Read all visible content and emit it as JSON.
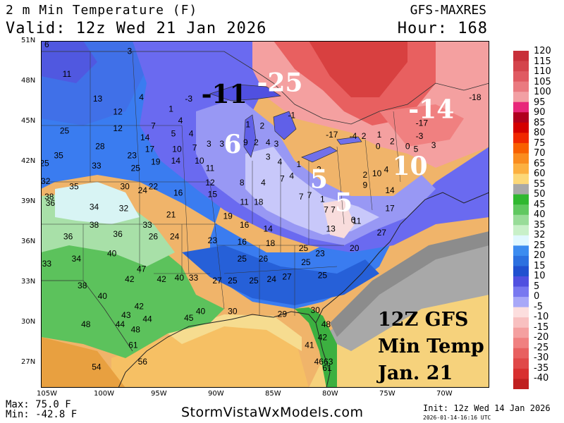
{
  "header": {
    "title": "2 m Min Temperature (F)",
    "valid": "Valid: 12z Wed 21 Jan 2026",
    "model": "GFS-MAXRES",
    "hour": "Hour: 168"
  },
  "footer": {
    "max": "Max: 75.0 F",
    "min": "Min: -42.8 F",
    "site": "StormVistaWxModels.com",
    "init": "Init: 12z Wed 14 Jan 2026",
    "stamp": "2026-01-14-16:16 UTC"
  },
  "caption": {
    "line1": "12Z GFS",
    "line2": "Min Temp",
    "line3": "Jan. 21"
  },
  "axes": {
    "lat_labels": [
      "51N",
      "48N",
      "45N",
      "42N",
      "39N",
      "36N",
      "33N",
      "30N",
      "27N"
    ],
    "lon_labels": [
      "105W",
      "100W",
      "95W",
      "90W",
      "85W",
      "80W",
      "75W",
      "70W"
    ]
  },
  "legend": {
    "labels": [
      "120",
      "115",
      "110",
      "105",
      "100",
      "95",
      "90",
      "85",
      "80",
      "75",
      "70",
      "65",
      "60",
      "55",
      "50",
      "45",
      "40",
      "35",
      "32",
      "25",
      "20",
      "15",
      "10",
      "5",
      "0",
      "-5",
      "-10",
      "-15",
      "-20",
      "-25",
      "-30",
      "-35",
      "-40"
    ],
    "colors": [
      "#c8303a",
      "#d4444c",
      "#e05a62",
      "#ea7a80",
      "#f2a0a4",
      "#e8287a",
      "#b0001e",
      "#d40000",
      "#f02800",
      "#f86000",
      "#fa8c1e",
      "#fcb040",
      "#fcd878",
      "#a8a8a8",
      "#30b830",
      "#60c860",
      "#98dc98",
      "#c8f0c8",
      "#e0f8ff",
      "#3c8cf0",
      "#2c70e0",
      "#2050d0",
      "#5050e0",
      "#7878f0",
      "#a8a8f8",
      "#fcdede",
      "#f8c0c0",
      "#f4a0a0",
      "#f08080",
      "#e86060",
      "#e04848",
      "#d83030",
      "#c02020"
    ]
  },
  "map_labels": {
    "big": [
      {
        "t": "-11",
        "lon": -89.5,
        "lat": 46.2
      },
      {
        "t": "-25",
        "lon": -84.8,
        "lat": 47.1
      },
      {
        "t": "-14",
        "lon": -72.0,
        "lat": 45.0
      },
      {
        "t": "6",
        "lon": -88.8,
        "lat": 42.3
      },
      {
        "t": "5",
        "lon": -81.5,
        "lat": 39.6
      },
      {
        "t": "5",
        "lon": -79.4,
        "lat": 37.8
      },
      {
        "t": "10",
        "lon": -73.8,
        "lat": 40.6
      }
    ],
    "small": [
      {
        "t": "6",
        "lon": -104.5,
        "lat": 50.5
      },
      {
        "t": "3",
        "lon": -97.5,
        "lat": 50.0
      },
      {
        "t": "11",
        "lon": -102.8,
        "lat": 48.2
      },
      {
        "t": "13",
        "lon": -100.2,
        "lat": 46.3
      },
      {
        "t": "4",
        "lon": -96.5,
        "lat": 46.4
      },
      {
        "t": "-3",
        "lon": -92.5,
        "lat": 46.3
      },
      {
        "t": "12",
        "lon": -98.5,
        "lat": 45.3
      },
      {
        "t": "1",
        "lon": -94.0,
        "lat": 45.5
      },
      {
        "t": "12",
        "lon": -98.5,
        "lat": 44.0
      },
      {
        "t": "7",
        "lon": -95.5,
        "lat": 44.2
      },
      {
        "t": "4",
        "lon": -93.2,
        "lat": 44.6
      },
      {
        "t": "25",
        "lon": -103.0,
        "lat": 43.8
      },
      {
        "t": "5",
        "lon": -93.8,
        "lat": 43.6
      },
      {
        "t": "4",
        "lon": -92.3,
        "lat": 43.6
      },
      {
        "t": "14",
        "lon": -96.2,
        "lat": 43.3
      },
      {
        "t": "28",
        "lon": -100.0,
        "lat": 42.6
      },
      {
        "t": "17",
        "lon": -95.8,
        "lat": 42.4
      },
      {
        "t": "10",
        "lon": -93.5,
        "lat": 42.4
      },
      {
        "t": "7",
        "lon": -92.0,
        "lat": 42.5
      },
      {
        "t": "3",
        "lon": -90.8,
        "lat": 42.8
      },
      {
        "t": "3",
        "lon": -89.7,
        "lat": 42.8
      },
      {
        "t": "23",
        "lon": -97.3,
        "lat": 41.9
      },
      {
        "t": "35",
        "lon": -103.5,
        "lat": 41.9
      },
      {
        "t": "19",
        "lon": -95.3,
        "lat": 41.4
      },
      {
        "t": "14",
        "lon": -93.6,
        "lat": 41.5
      },
      {
        "t": "10",
        "lon": -91.6,
        "lat": 41.5
      },
      {
        "t": "11",
        "lon": -90.7,
        "lat": 40.9
      },
      {
        "t": "25",
        "lon": -104.7,
        "lat": 41.3
      },
      {
        "t": "33",
        "lon": -100.3,
        "lat": 41.1
      },
      {
        "t": "25",
        "lon": -97.0,
        "lat": 40.9
      },
      {
        "t": "32",
        "lon": -104.6,
        "lat": 39.9
      },
      {
        "t": "35",
        "lon": -102.2,
        "lat": 39.5
      },
      {
        "t": "30",
        "lon": -97.9,
        "lat": 39.5
      },
      {
        "t": "22",
        "lon": -95.5,
        "lat": 39.5
      },
      {
        "t": "24",
        "lon": -96.4,
        "lat": 39.2
      },
      {
        "t": "12",
        "lon": -90.7,
        "lat": 39.8
      },
      {
        "t": "8",
        "lon": -88.0,
        "lat": 39.8
      },
      {
        "t": "4",
        "lon": -86.2,
        "lat": 39.8
      },
      {
        "t": "16",
        "lon": -93.4,
        "lat": 39.0
      },
      {
        "t": "15",
        "lon": -90.5,
        "lat": 38.9
      },
      {
        "t": "38",
        "lon": -104.3,
        "lat": 38.7
      },
      {
        "t": "36",
        "lon": -104.2,
        "lat": 38.2
      },
      {
        "t": "34",
        "lon": -100.5,
        "lat": 37.9
      },
      {
        "t": "32",
        "lon": -98.0,
        "lat": 37.8
      },
      {
        "t": "21",
        "lon": -94.0,
        "lat": 37.3
      },
      {
        "t": "11",
        "lon": -87.8,
        "lat": 38.3
      },
      {
        "t": "18",
        "lon": -86.6,
        "lat": 38.3
      },
      {
        "t": "19",
        "lon": -89.2,
        "lat": 37.2
      },
      {
        "t": "38",
        "lon": -100.5,
        "lat": 36.5
      },
      {
        "t": "33",
        "lon": -96.0,
        "lat": 36.5
      },
      {
        "t": "16",
        "lon": -87.8,
        "lat": 36.5
      },
      {
        "t": "14",
        "lon": -85.8,
        "lat": 36.2
      },
      {
        "t": "36",
        "lon": -102.7,
        "lat": 35.6
      },
      {
        "t": "36",
        "lon": -98.5,
        "lat": 35.8
      },
      {
        "t": "26",
        "lon": -95.5,
        "lat": 35.6
      },
      {
        "t": "24",
        "lon": -93.7,
        "lat": 35.6
      },
      {
        "t": "23",
        "lon": -90.5,
        "lat": 35.3
      },
      {
        "t": "16",
        "lon": -88.0,
        "lat": 35.2
      },
      {
        "t": "18",
        "lon": -85.6,
        "lat": 35.1
      },
      {
        "t": "40",
        "lon": -99.0,
        "lat": 34.3
      },
      {
        "t": "34",
        "lon": -102.0,
        "lat": 33.9
      },
      {
        "t": "25",
        "lon": -88.0,
        "lat": 33.9
      },
      {
        "t": "26",
        "lon": -86.2,
        "lat": 33.9
      },
      {
        "t": "33",
        "lon": -104.5,
        "lat": 33.5
      },
      {
        "t": "47",
        "lon": -96.5,
        "lat": 33.1
      },
      {
        "t": "42",
        "lon": -97.5,
        "lat": 32.3
      },
      {
        "t": "42",
        "lon": -94.8,
        "lat": 32.3
      },
      {
        "t": "40",
        "lon": -93.3,
        "lat": 32.4
      },
      {
        "t": "33",
        "lon": -92.1,
        "lat": 32.4
      },
      {
        "t": "27",
        "lon": -90.1,
        "lat": 32.2
      },
      {
        "t": "25",
        "lon": -88.8,
        "lat": 32.2
      },
      {
        "t": "25",
        "lon": -87.0,
        "lat": 32.2
      },
      {
        "t": "24",
        "lon": -85.5,
        "lat": 32.3
      },
      {
        "t": "27",
        "lon": -84.2,
        "lat": 32.5
      },
      {
        "t": "38",
        "lon": -101.5,
        "lat": 31.8
      },
      {
        "t": "40",
        "lon": -99.8,
        "lat": 31.0
      },
      {
        "t": "42",
        "lon": -96.7,
        "lat": 30.2
      },
      {
        "t": "43",
        "lon": -97.8,
        "lat": 29.5
      },
      {
        "t": "44",
        "lon": -96.0,
        "lat": 29.2
      },
      {
        "t": "40",
        "lon": -91.5,
        "lat": 29.8
      },
      {
        "t": "45",
        "lon": -92.5,
        "lat": 29.3
      },
      {
        "t": "30",
        "lon": -88.8,
        "lat": 29.8
      },
      {
        "t": "29",
        "lon": -84.6,
        "lat": 29.6
      },
      {
        "t": "30",
        "lon": -81.8,
        "lat": 29.9
      },
      {
        "t": "48",
        "lon": -101.2,
        "lat": 28.8
      },
      {
        "t": "44",
        "lon": -98.3,
        "lat": 28.8
      },
      {
        "t": "48",
        "lon": -97.0,
        "lat": 28.4
      },
      {
        "t": "48",
        "lon": -80.9,
        "lat": 28.8
      },
      {
        "t": "42",
        "lon": -81.2,
        "lat": 27.8
      },
      {
        "t": "41",
        "lon": -82.3,
        "lat": 27.2
      },
      {
        "t": "61",
        "lon": -97.2,
        "lat": 27.2
      },
      {
        "t": "56",
        "lon": -96.4,
        "lat": 25.9
      },
      {
        "t": "54",
        "lon": -100.3,
        "lat": 25.5
      },
      {
        "t": "46",
        "lon": -81.5,
        "lat": 25.9
      },
      {
        "t": "63",
        "lon": -80.7,
        "lat": 25.9
      },
      {
        "t": "61",
        "lon": -80.8,
        "lat": 25.4
      },
      {
        "t": "-17",
        "lon": -80.4,
        "lat": 43.5
      },
      {
        "t": "-4",
        "lon": -78.6,
        "lat": 43.4
      },
      {
        "t": "2",
        "lon": -77.7,
        "lat": 43.4
      },
      {
        "t": "1",
        "lon": -76.4,
        "lat": 43.5
      },
      {
        "t": "0",
        "lon": -76.5,
        "lat": 42.6
      },
      {
        "t": "2",
        "lon": -75.3,
        "lat": 43.0
      },
      {
        "t": "-18",
        "lon": -68.3,
        "lat": 46.4
      },
      {
        "t": "-17",
        "lon": -72.8,
        "lat": 44.4
      },
      {
        "t": "-3",
        "lon": -73.0,
        "lat": 43.4
      },
      {
        "t": "0",
        "lon": -74.0,
        "lat": 42.6
      },
      {
        "t": "5",
        "lon": -73.3,
        "lat": 42.4
      },
      {
        "t": "3",
        "lon": -71.8,
        "lat": 42.7
      },
      {
        "t": "-1",
        "lon": -83.8,
        "lat": 45.0
      },
      {
        "t": "2",
        "lon": -86.3,
        "lat": 44.2
      },
      {
        "t": "1",
        "lon": -87.5,
        "lat": 44.3
      },
      {
        "t": "9",
        "lon": -87.7,
        "lat": 42.9
      },
      {
        "t": "2",
        "lon": -86.8,
        "lat": 42.9
      },
      {
        "t": "4",
        "lon": -85.8,
        "lat": 42.9
      },
      {
        "t": "3",
        "lon": -85.1,
        "lat": 42.8
      },
      {
        "t": "3",
        "lon": -85.8,
        "lat": 41.8
      },
      {
        "t": "4",
        "lon": -84.8,
        "lat": 41.4
      },
      {
        "t": "1",
        "lon": -83.2,
        "lat": 41.2
      },
      {
        "t": "4",
        "lon": -83.8,
        "lat": 40.3
      },
      {
        "t": "7",
        "lon": -84.6,
        "lat": 40.1
      },
      {
        "t": "2",
        "lon": -81.5,
        "lat": 40.8
      },
      {
        "t": "7",
        "lon": -82.3,
        "lat": 38.8
      },
      {
        "t": "7",
        "lon": -83.0,
        "lat": 38.7
      },
      {
        "t": "1",
        "lon": -81.2,
        "lat": 38.5
      },
      {
        "t": "7",
        "lon": -80.9,
        "lat": 37.7
      },
      {
        "t": "7",
        "lon": -80.3,
        "lat": 37.7
      },
      {
        "t": "2",
        "lon": -77.6,
        "lat": 40.4
      },
      {
        "t": "10",
        "lon": -76.6,
        "lat": 40.5
      },
      {
        "t": "4",
        "lon": -75.8,
        "lat": 40.8
      },
      {
        "t": "9",
        "lon": -77.6,
        "lat": 39.6
      },
      {
        "t": "14",
        "lon": -75.5,
        "lat": 39.2
      },
      {
        "t": "17",
        "lon": -75.5,
        "lat": 37.8
      },
      {
        "t": "6",
        "lon": -78.6,
        "lat": 36.9
      },
      {
        "t": "11",
        "lon": -78.3,
        "lat": 36.8
      },
      {
        "t": "13",
        "lon": -80.5,
        "lat": 36.2
      },
      {
        "t": "27",
        "lon": -76.2,
        "lat": 35.9
      },
      {
        "t": "20",
        "lon": -78.5,
        "lat": 34.7
      },
      {
        "t": "23",
        "lon": -81.4,
        "lat": 34.3
      },
      {
        "t": "25",
        "lon": -82.8,
        "lat": 34.7
      },
      {
        "t": "25",
        "lon": -81.2,
        "lat": 32.6
      },
      {
        "t": "25",
        "lon": -82.6,
        "lat": 33.6
      }
    ]
  }
}
